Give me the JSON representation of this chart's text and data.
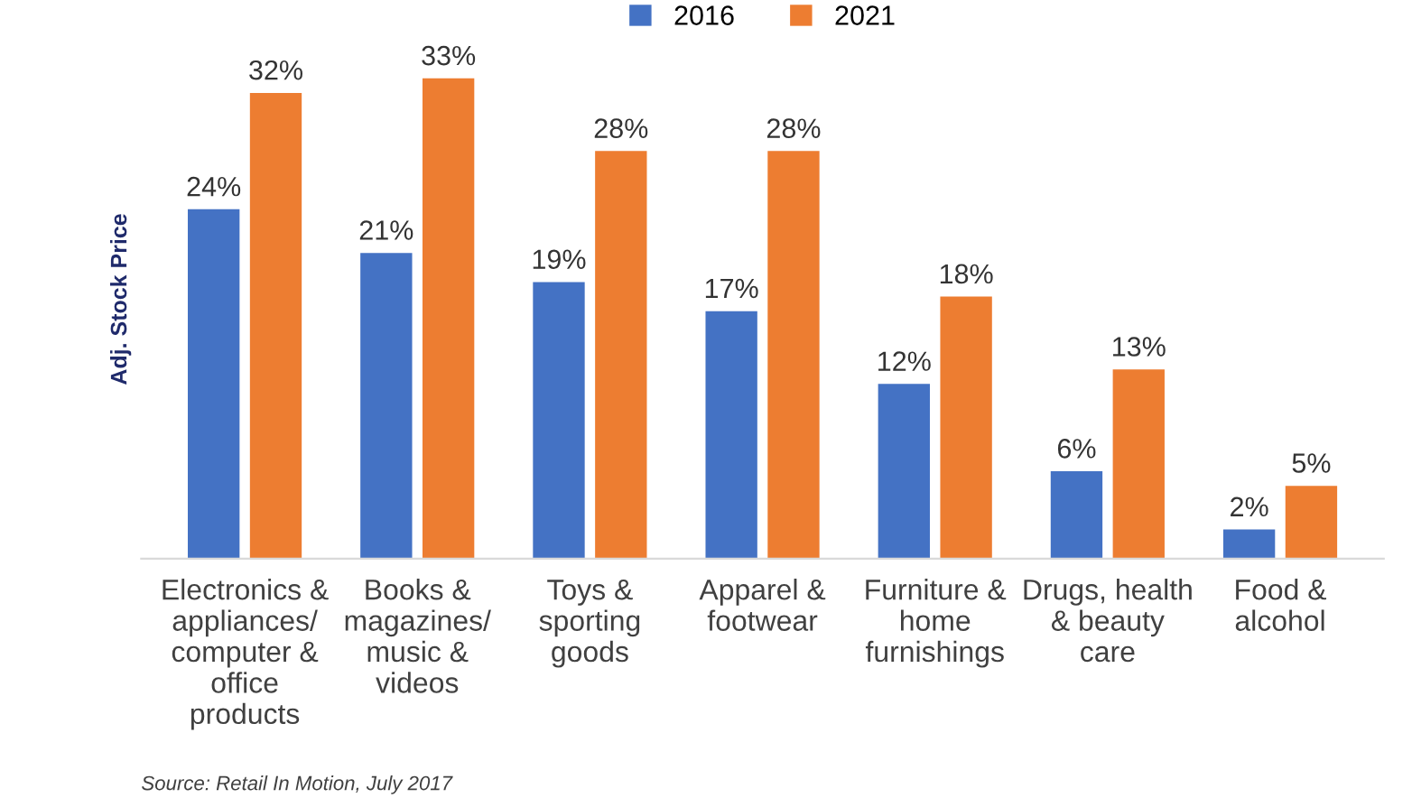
{
  "chart_data": {
    "type": "bar",
    "ylabel": "Adj. Stock Price",
    "categories": [
      "Electronics &\nappliances/\ncomputer &\noffice\nproducts",
      "Books &\nmagazines/\nmusic &\nvideos",
      "Toys &\nsporting\ngoods",
      "Apparel &\nfootwear",
      "Furniture &\nhome\nfurnishings",
      "Drugs, health\n& beauty\ncare",
      "Food &\nalcohol"
    ],
    "series": [
      {
        "name": "2016",
        "color": "#4472c4",
        "values": [
          24,
          21,
          19,
          17,
          12,
          6,
          2
        ],
        "value_labels": [
          "24%",
          "21%",
          "19%",
          "17%",
          "12%",
          "6%",
          "2%"
        ]
      },
      {
        "name": "2021",
        "color": "#ed7d31",
        "values": [
          32,
          33,
          28,
          28,
          18,
          13,
          5
        ],
        "value_labels": [
          "32%",
          "33%",
          "28%",
          "28%",
          "18%",
          "13%",
          "5%"
        ]
      }
    ],
    "legend": "top",
    "tick_labels": "x",
    "grid": false,
    "annotations": [
      "Source: Retail In Motion, July 2017"
    ]
  }
}
